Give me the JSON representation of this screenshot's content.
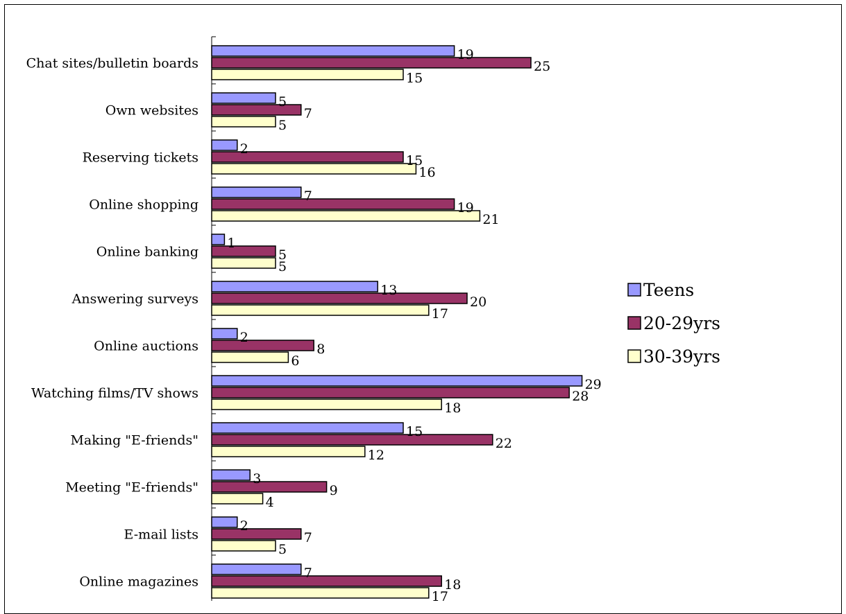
{
  "chart_data": {
    "type": "bar",
    "orientation": "horizontal",
    "categories": [
      "Chat sites/bulletin boards",
      "Own websites",
      "Reserving tickets",
      "Online shopping",
      "Online banking",
      "Answering surveys",
      "Online auctions",
      "Watching films/TV shows",
      "Making \"E-friends\"",
      "Meeting \"E-friends\"",
      "E-mail lists",
      "Online magazines"
    ],
    "series": [
      {
        "name": "Teens",
        "color": "#9999ff",
        "values": [
          19,
          5,
          2,
          7,
          1,
          13,
          2,
          29,
          15,
          3,
          2,
          7
        ]
      },
      {
        "name": "20-29yrs",
        "color": "#993366",
        "values": [
          25,
          7,
          15,
          19,
          5,
          20,
          8,
          28,
          22,
          9,
          7,
          18
        ]
      },
      {
        "name": "30-39yrs",
        "color": "#ffffcc",
        "values": [
          15,
          5,
          16,
          21,
          5,
          17,
          6,
          18,
          12,
          4,
          5,
          17
        ]
      }
    ],
    "xlim": [
      0,
      30
    ],
    "grid": false,
    "legend_position": "right"
  }
}
